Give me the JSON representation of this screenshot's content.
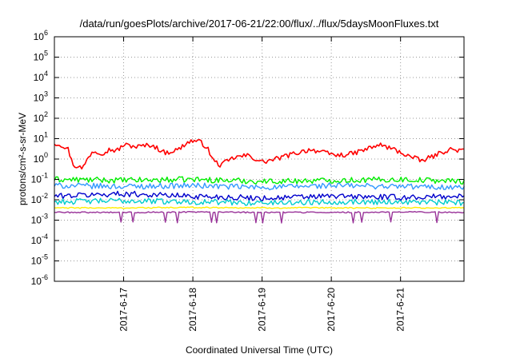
{
  "chart_data": {
    "type": "line",
    "title": "/data/run/goesPlots/archive/2017-06-21/22:00/flux/../flux/5daysMoonFluxes.txt",
    "xlabel": "Coordinated Universal Time (UTC)",
    "ylabel": "protons/cm²-s-sr-MeV",
    "y_scale": "log",
    "ylim": [
      1e-06,
      1000000.0
    ],
    "y_ticks": [
      {
        "value": 1e-06,
        "base": "10",
        "exp": "-6"
      },
      {
        "value": 1e-05,
        "base": "10",
        "exp": "-5"
      },
      {
        "value": 0.0001,
        "base": "10",
        "exp": "-4"
      },
      {
        "value": 0.001,
        "base": "10",
        "exp": "-3"
      },
      {
        "value": 0.01,
        "base": "10",
        "exp": "-2"
      },
      {
        "value": 0.1,
        "base": "10",
        "exp": "-1"
      },
      {
        "value": 1,
        "base": "10",
        "exp": "0"
      },
      {
        "value": 10,
        "base": "10",
        "exp": "1"
      },
      {
        "value": 100,
        "base": "10",
        "exp": "2"
      },
      {
        "value": 1000,
        "base": "10",
        "exp": "3"
      },
      {
        "value": 10000,
        "base": "10",
        "exp": "4"
      },
      {
        "value": 100000,
        "base": "10",
        "exp": "5"
      },
      {
        "value": 1000000,
        "base": "10",
        "exp": "6"
      }
    ],
    "xlim": [
      "2017-06-16 00:00",
      "2017-06-21 22:00"
    ],
    "x_ticks": [
      "2017-6-17",
      "2017-6-18",
      "2017-6-19",
      "2017-6-20",
      "2017-6-21"
    ],
    "grid": true,
    "series": [
      {
        "color": "#ff0000",
        "t": [
          0,
          0.1,
          0.2,
          0.25,
          0.3,
          0.35,
          0.4,
          0.45,
          0.55,
          0.7,
          0.8,
          0.9,
          1.0,
          1.2,
          1.4,
          1.6,
          1.8,
          1.9,
          2.0,
          2.1,
          2.2,
          2.3,
          2.4,
          2.6,
          2.8,
          3.0,
          3.2,
          3.5,
          3.7,
          3.9,
          4.1,
          4.3,
          4.5,
          4.7,
          4.9,
          5.1,
          5.3,
          5.5,
          5.7,
          5.92
        ],
        "values": [
          6,
          5,
          3,
          0.8,
          0.4,
          0.5,
          0.3,
          0.7,
          2.5,
          2,
          3,
          2.5,
          5,
          4,
          5,
          2,
          3,
          6,
          8,
          7,
          4,
          0.8,
          0.5,
          1.2,
          1.5,
          0.7,
          1,
          2,
          3,
          2,
          1.5,
          1.8,
          3,
          5,
          3,
          1.5,
          0.8,
          1.5,
          3,
          2.5
        ]
      },
      {
        "color": "#00ee00",
        "t": [
          0,
          1,
          2,
          3,
          4,
          5,
          5.92
        ],
        "values": [
          0.1,
          0.09,
          0.1,
          0.08,
          0.09,
          0.1,
          0.08
        ]
      },
      {
        "color": "#3399ff",
        "t": [
          0,
          1,
          2,
          3,
          4,
          5,
          5.92
        ],
        "values": [
          0.05,
          0.045,
          0.05,
          0.04,
          0.05,
          0.045,
          0.04
        ]
      },
      {
        "color": "#0000cc",
        "t": [
          0,
          1,
          2,
          3,
          4,
          5,
          5.92
        ],
        "values": [
          0.015,
          0.02,
          0.015,
          0.012,
          0.015,
          0.013,
          0.015
        ]
      },
      {
        "color": "#00cccc",
        "t": [
          0,
          1,
          2,
          3,
          4,
          5,
          5.92
        ],
        "values": [
          0.008,
          0.009,
          0.008,
          0.007,
          0.008,
          0.008,
          0.007
        ]
      },
      {
        "color": "#ffee00",
        "t": [
          0,
          1,
          2,
          3,
          4,
          5,
          5.92
        ],
        "values": [
          0.004,
          0.004,
          0.0042,
          0.004,
          0.004,
          0.004,
          0.004
        ]
      },
      {
        "color": "#993399",
        "t": [
          0,
          1,
          2,
          3,
          4,
          5,
          5.92
        ],
        "values": [
          0.0024,
          0.0024,
          0.0025,
          0.0024,
          0.0024,
          0.0025,
          0.0024
        ]
      }
    ]
  }
}
